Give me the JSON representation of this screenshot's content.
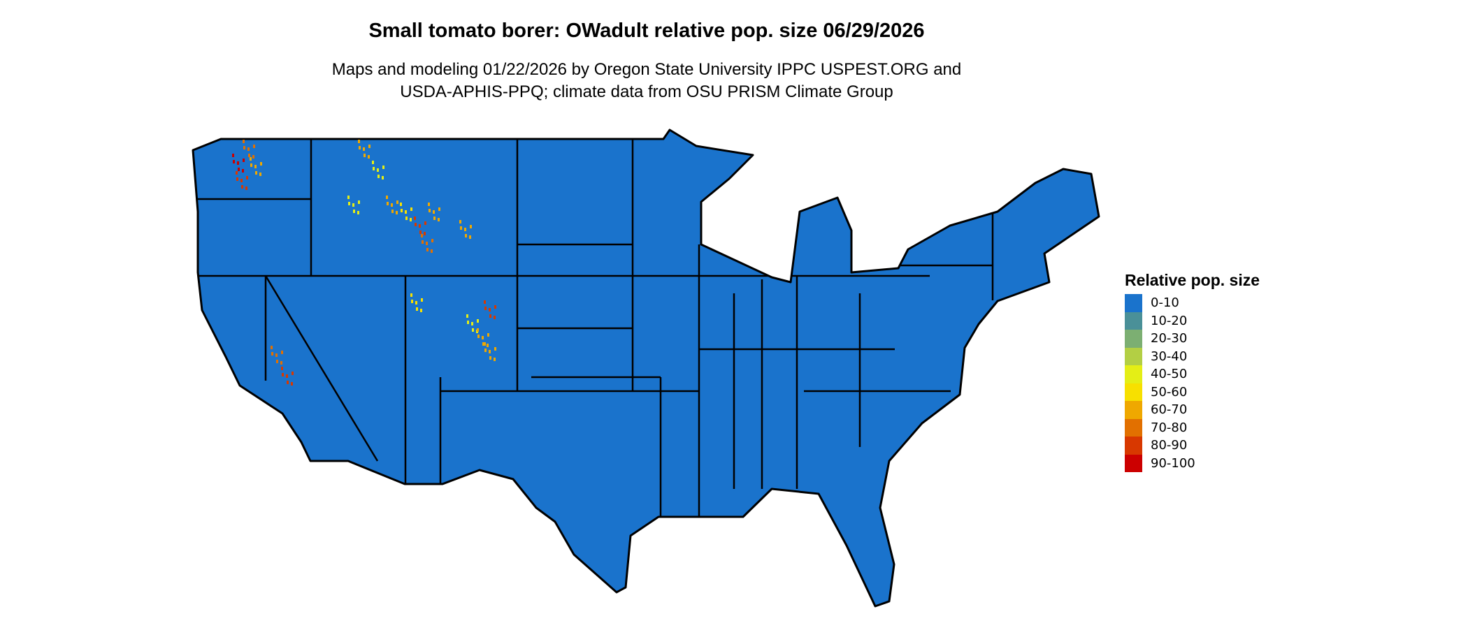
{
  "title": "Small tomato borer: OWadult relative pop. size 06/29/2026",
  "subtitle_lines": [
    "Maps and modeling 01/22/2026 by Oregon State University IPPC USPEST.ORG and",
    "USDA-APHIS-PPQ; climate data from OSU PRISM Climate Group"
  ],
  "map": {
    "region": "Contiguous United States",
    "fill_color": "#1a73cc",
    "border_color": "#000000"
  },
  "legend": {
    "title": "Relative pop. size",
    "items": [
      {
        "label": "0-10",
        "color": "#1a73cc"
      },
      {
        "label": "10-20",
        "color": "#4a9098"
      },
      {
        "label": "20-30",
        "color": "#7caf72"
      },
      {
        "label": "30-40",
        "color": "#b3cf44"
      },
      {
        "label": "40-50",
        "color": "#e4ee16"
      },
      {
        "label": "50-60",
        "color": "#f7e000"
      },
      {
        "label": "60-70",
        "color": "#efa800"
      },
      {
        "label": "70-80",
        "color": "#e27000"
      },
      {
        "label": "80-90",
        "color": "#d83800"
      },
      {
        "label": "90-100",
        "color": "#cc0000"
      }
    ]
  }
}
